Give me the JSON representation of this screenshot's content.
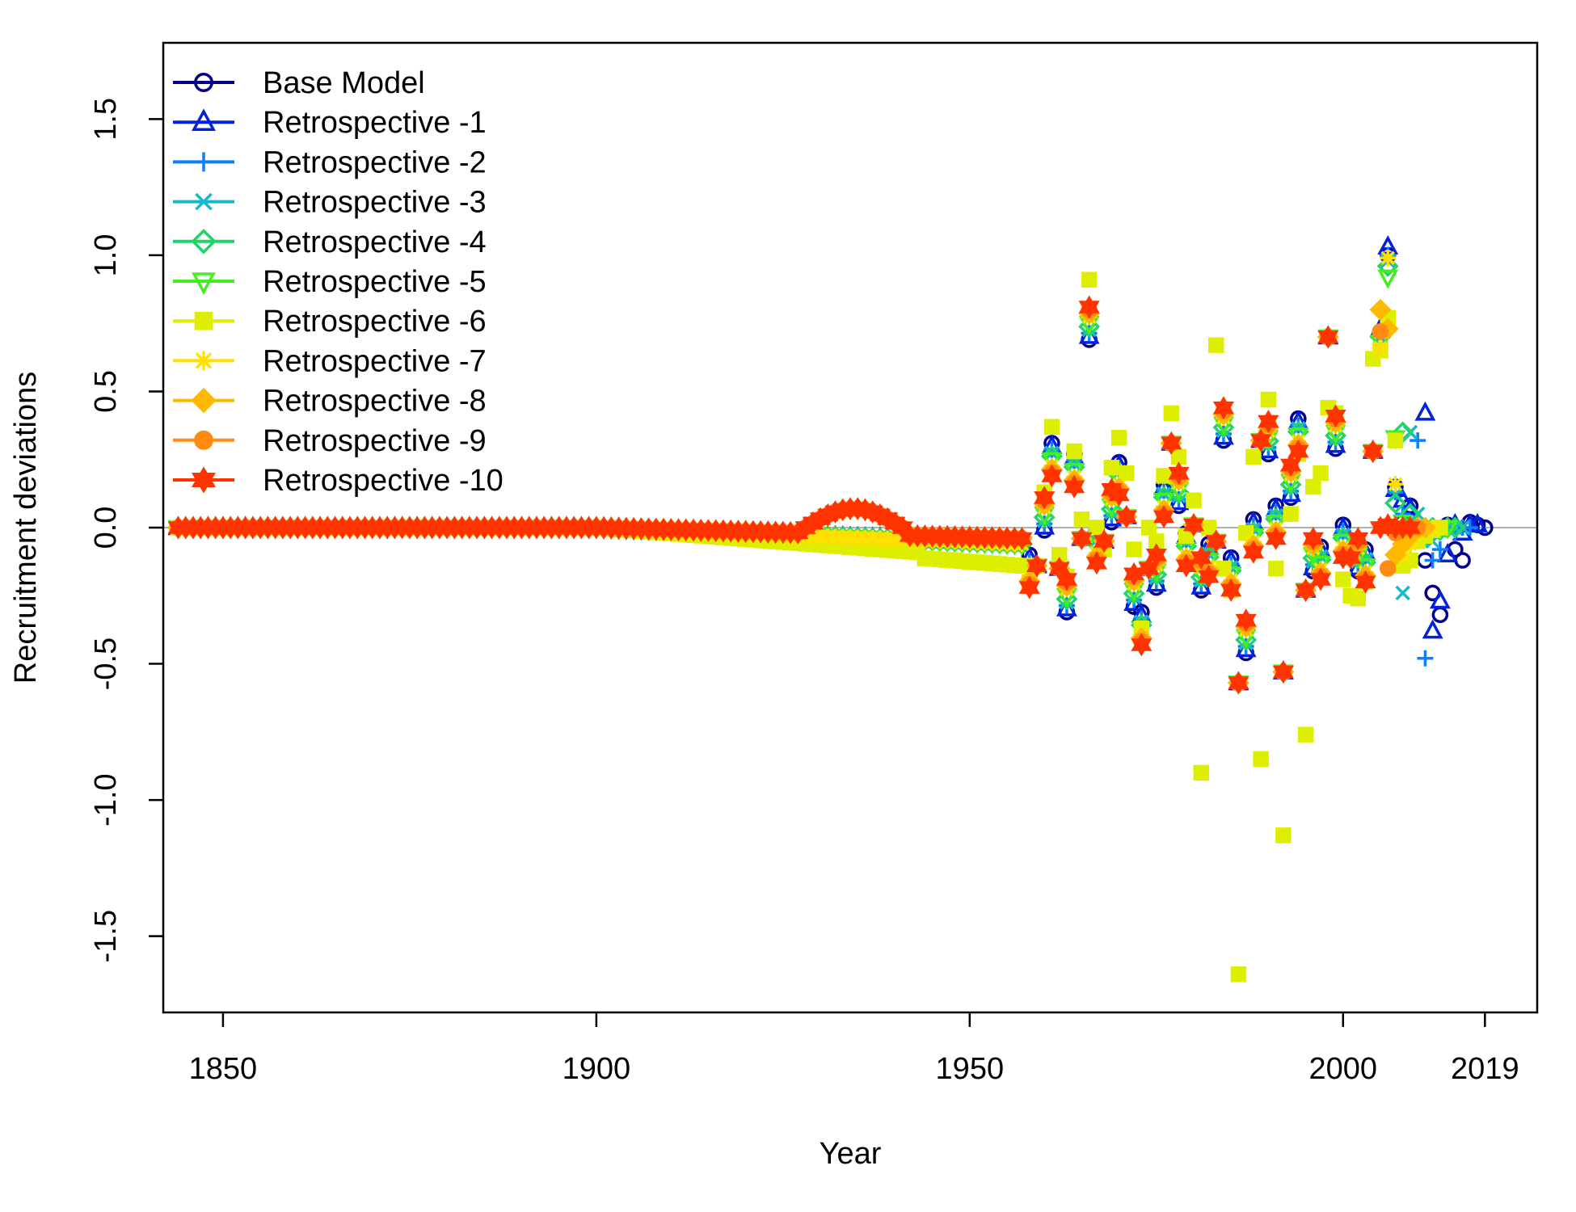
{
  "chart_data": {
    "type": "scatter",
    "title": "",
    "xlabel": "Year",
    "ylabel": "Recruitment deviations",
    "xlim": [
      1842,
      2026
    ],
    "ylim": [
      -1.78,
      1.78
    ],
    "x_ticks": [
      1850,
      1900,
      1950,
      2000,
      2019
    ],
    "x_tick_labels": [
      "1850",
      "1900",
      "1950",
      "2000",
      "2019"
    ],
    "y_ticks": [
      -1.5,
      -1.0,
      -0.5,
      0.0,
      0.5,
      1.0,
      1.5
    ],
    "y_tick_labels": [
      "-1.5",
      "-1.0",
      "-0.5",
      "0.0",
      "0.5",
      "1.0",
      "1.5"
    ],
    "reference_line_y": 0,
    "grid": false,
    "legend_position": "top-left",
    "series": [
      {
        "name": "Base Model",
        "color": "#00008B",
        "marker": "circle-open",
        "end_year": 2019,
        "late": [
          [
            2005,
            0.72
          ],
          [
            2006,
            1.0
          ],
          [
            2007,
            0.15
          ],
          [
            2008,
            0.02
          ],
          [
            2009,
            0.08
          ],
          [
            2010,
            0.0
          ],
          [
            2011,
            -0.12
          ],
          [
            2012,
            -0.24
          ],
          [
            2013,
            -0.32
          ],
          [
            2014,
            0.01
          ],
          [
            2015,
            -0.08
          ],
          [
            2016,
            -0.12
          ],
          [
            2017,
            0.02
          ],
          [
            2018,
            0.01
          ],
          [
            2019,
            0.0
          ]
        ]
      },
      {
        "name": "Retrospective -1",
        "color": "#0022DD",
        "marker": "triangle-up-open",
        "end_year": 2018,
        "late": [
          [
            2005,
            0.73
          ],
          [
            2006,
            1.03
          ],
          [
            2007,
            0.14
          ],
          [
            2008,
            0.1
          ],
          [
            2009,
            0.07
          ],
          [
            2010,
            0.0
          ],
          [
            2011,
            0.42
          ],
          [
            2012,
            -0.38
          ],
          [
            2013,
            -0.27
          ],
          [
            2014,
            -0.1
          ],
          [
            2015,
            0.01
          ],
          [
            2016,
            -0.02
          ],
          [
            2017,
            0.01
          ],
          [
            2018,
            0.01
          ]
        ]
      },
      {
        "name": "Retrospective -2",
        "color": "#0A7FFF",
        "marker": "plus",
        "end_year": 2017,
        "late": [
          [
            2005,
            0.72
          ],
          [
            2006,
            1.0
          ],
          [
            2007,
            0.13
          ],
          [
            2008,
            0.05
          ],
          [
            2009,
            -0.12
          ],
          [
            2010,
            0.32
          ],
          [
            2011,
            -0.48
          ],
          [
            2012,
            -0.12
          ],
          [
            2013,
            -0.08
          ],
          [
            2014,
            0.0
          ],
          [
            2015,
            -0.02
          ],
          [
            2016,
            0.0
          ],
          [
            2017,
            0.0
          ]
        ]
      },
      {
        "name": "Retrospective -3",
        "color": "#17B8C8",
        "marker": "x",
        "end_year": 2016,
        "late": [
          [
            2005,
            0.7
          ],
          [
            2006,
            0.98
          ],
          [
            2007,
            0.12
          ],
          [
            2008,
            -0.24
          ],
          [
            2009,
            0.35
          ],
          [
            2010,
            0.05
          ],
          [
            2011,
            -0.02
          ],
          [
            2012,
            -0.05
          ],
          [
            2013,
            -0.01
          ],
          [
            2014,
            0.0
          ],
          [
            2015,
            0.0
          ],
          [
            2016,
            0.0
          ]
        ]
      },
      {
        "name": "Retrospective -4",
        "color": "#22D36A",
        "marker": "diamond-open",
        "end_year": 2015,
        "late": [
          [
            2005,
            0.7
          ],
          [
            2006,
            0.96
          ],
          [
            2007,
            0.09
          ],
          [
            2008,
            0.35
          ],
          [
            2009,
            0.05
          ],
          [
            2010,
            -0.04
          ],
          [
            2011,
            -0.03
          ],
          [
            2012,
            0.0
          ],
          [
            2013,
            -0.01
          ],
          [
            2014,
            0.0
          ],
          [
            2015,
            0.0
          ]
        ]
      },
      {
        "name": "Retrospective -5",
        "color": "#44EE22",
        "marker": "triangle-down-open",
        "end_year": 2014,
        "late": [
          [
            2005,
            0.68
          ],
          [
            2006,
            0.92
          ],
          [
            2007,
            0.33
          ],
          [
            2008,
            0.02
          ],
          [
            2009,
            -0.05
          ],
          [
            2010,
            -0.02
          ],
          [
            2011,
            -0.01
          ],
          [
            2012,
            0.0
          ],
          [
            2013,
            0.0
          ],
          [
            2014,
            0.0
          ]
        ]
      },
      {
        "name": "Retrospective -6",
        "color": "#DDEE00",
        "marker": "square-filled",
        "end_year": 2013,
        "late": [
          [
            2005,
            0.65
          ],
          [
            2006,
            0.77
          ],
          [
            2007,
            0.32
          ],
          [
            2008,
            -0.14
          ],
          [
            2009,
            -0.12
          ],
          [
            2010,
            -0.05
          ],
          [
            2011,
            -0.03
          ],
          [
            2012,
            -0.01
          ],
          [
            2013,
            0.0
          ]
        ]
      },
      {
        "name": "Retrospective -7",
        "color": "#FFE000",
        "marker": "asterisk",
        "end_year": 2012,
        "late": [
          [
            2005,
            0.66
          ],
          [
            2006,
            0.99
          ],
          [
            2007,
            0.16
          ],
          [
            2008,
            -0.1
          ],
          [
            2009,
            -0.06
          ],
          [
            2010,
            -0.02
          ],
          [
            2011,
            0.0
          ],
          [
            2012,
            0.0
          ]
        ]
      },
      {
        "name": "Retrospective -8",
        "color": "#FFB800",
        "marker": "diamond-filled",
        "end_year": 2011,
        "late": [
          [
            2005,
            0.8
          ],
          [
            2006,
            0.73
          ],
          [
            2007,
            -0.1
          ],
          [
            2008,
            -0.06
          ],
          [
            2009,
            -0.03
          ],
          [
            2010,
            0.0
          ],
          [
            2011,
            0.0
          ]
        ]
      },
      {
        "name": "Retrospective -9",
        "color": "#FF8C10",
        "marker": "circle-filled",
        "end_year": 2010,
        "late": [
          [
            2005,
            0.72
          ],
          [
            2006,
            -0.15
          ],
          [
            2007,
            -0.02
          ],
          [
            2008,
            0.0
          ],
          [
            2009,
            0.0
          ],
          [
            2010,
            0.0
          ]
        ]
      },
      {
        "name": "Retrospective -10",
        "color": "#FF3300",
        "marker": "star6",
        "end_year": 2009,
        "late": [
          [
            2005,
            0.0
          ],
          [
            2006,
            0.01
          ],
          [
            2007,
            0.0
          ],
          [
            2008,
            0.0
          ],
          [
            2009,
            0.0
          ]
        ]
      }
    ],
    "shared_main_period": {
      "years": [
        1958,
        1959,
        1960,
        1961,
        1962,
        1963,
        1964,
        1965,
        1966,
        1967,
        1968,
        1969,
        1970,
        1971,
        1972,
        1973,
        1974,
        1975,
        1976,
        1977,
        1978,
        1979,
        1980,
        1981,
        1982,
        1983,
        1984,
        1985,
        1986,
        1987,
        1988,
        1989,
        1990,
        1991,
        1992,
        1993,
        1994,
        1995,
        1996,
        1997,
        1998,
        1999,
        2000,
        2001,
        2002,
        2003,
        2004
      ],
      "values": [
        -0.16,
        -0.14,
        0.05,
        0.25,
        -0.15,
        -0.25,
        0.21,
        -0.04,
        0.75,
        -0.07,
        -0.05,
        0.08,
        0.18,
        0.04,
        -0.23,
        -0.37,
        -0.15,
        -0.16,
        0.1,
        0.31,
        0.14,
        -0.08,
        0.01,
        -0.17,
        -0.12,
        -0.05,
        0.38,
        -0.17,
        -0.57,
        -0.4,
        -0.03,
        0.32,
        0.33,
        0.02,
        -0.53,
        0.17,
        0.34,
        -0.23,
        -0.1,
        -0.13,
        0.7,
        0.35,
        -0.05,
        -0.11,
        -0.1,
        -0.14,
        0.28
      ]
    },
    "retro6_main_period_values": [
      -0.2,
      -0.14,
      0.13,
      0.37,
      -0.1,
      -0.18,
      0.28,
      0.03,
      0.91,
      0.0,
      -0.08,
      0.22,
      0.33,
      0.2,
      -0.08,
      -0.37,
      0.0,
      -0.05,
      0.19,
      0.42,
      0.26,
      -0.03,
      0.1,
      -0.9,
      0.0,
      0.67,
      -0.15,
      -0.23,
      -1.64,
      -0.02,
      0.26,
      -0.85,
      0.47,
      -0.15,
      -1.13,
      0.05,
      0.27,
      -0.76,
      0.15,
      0.2,
      0.44,
      0.42,
      -0.19,
      -0.25,
      -0.26,
      -0.2,
      0.62
    ]
  }
}
